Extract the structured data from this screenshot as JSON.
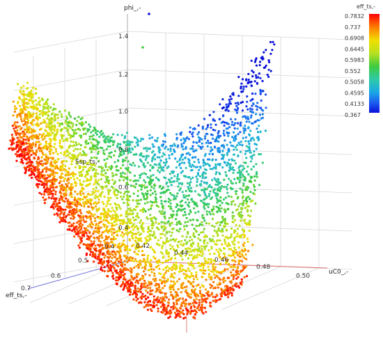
{
  "chart_data": {
    "type": "scatter",
    "dimensions": "3d",
    "axes": {
      "z": {
        "label": "phi_,-",
        "ticks": [
          "1.4",
          "1.2",
          "1.0",
          "0.8",
          "0.6",
          "0.4"
        ]
      },
      "x": {
        "label": "uC0_,-",
        "ticks": [
          "0.4",
          "0.42",
          "0.44",
          "0.46",
          "0.48",
          "0.50"
        ]
      },
      "y": {
        "label": "eff_ts,-",
        "ticks": [
          "0.5",
          "0.6",
          "0.7"
        ]
      },
      "extra_label": "Ssp_ts,-"
    },
    "color_variable": "eff_ts,-",
    "colorbar": {
      "title": "eff_ts,-",
      "range": [
        0.367,
        0.7832
      ],
      "ticks": [
        "0.7832",
        "0.737",
        "0.6908",
        "0.6445",
        "0.5983",
        "0.552",
        "0.5058",
        "0.4595",
        "0.4133",
        "0.367"
      ],
      "colors": [
        "#ff0000",
        "#ff7a00",
        "#f0e000",
        "#b6e020",
        "#3ecb3e",
        "#2fc9a6",
        "#1aa9e6",
        "#1c5cf0",
        "#0a10d8"
      ]
    },
    "grid": true,
    "approx_point_count": 5000
  }
}
